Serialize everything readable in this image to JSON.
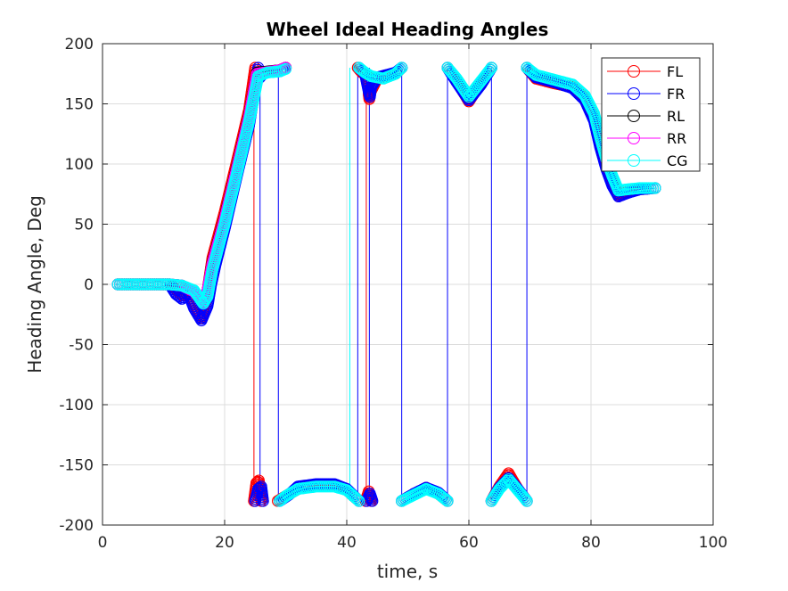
{
  "chart_data": {
    "type": "line",
    "title": "Wheel Ideal Heading Angles",
    "xlabel": "time, s",
    "ylabel": "Heading Angle, Deg",
    "xlim": [
      0,
      100
    ],
    "ylim": [
      -200,
      200
    ],
    "xticks": [
      0,
      20,
      40,
      60,
      80,
      100
    ],
    "yticks": [
      -200,
      -150,
      -100,
      -50,
      0,
      50,
      100,
      150,
      200
    ],
    "grid": true,
    "legend_position": "top-right",
    "series": [
      {
        "name": "FL",
        "color": "#ff0000",
        "segments": [
          [
            [
              2.5,
              0
            ],
            [
              11,
              0
            ],
            [
              12,
              -4
            ],
            [
              13,
              -9
            ],
            [
              14,
              -4
            ],
            [
              15,
              -15
            ],
            [
              16.2,
              -28
            ],
            [
              17,
              -12
            ],
            [
              17.5,
              5
            ],
            [
              18,
              22
            ],
            [
              20,
              60
            ],
            [
              22,
              102
            ],
            [
              24,
              145
            ],
            [
              25,
              180
            ]
          ],
          [
            [
              24.8,
              -180
            ],
            [
              25.2,
              -165
            ],
            [
              25.6,
              -163
            ],
            [
              26,
              -180
            ]
          ],
          [
            [
              25.2,
              170
            ],
            [
              26.3,
              176
            ],
            [
              29,
              178
            ],
            [
              30,
              180
            ]
          ],
          [
            [
              28.7,
              -180
            ],
            [
              30,
              -176
            ],
            [
              32,
              -170
            ],
            [
              35,
              -167
            ],
            [
              38,
              -167
            ],
            [
              40,
              -171
            ],
            [
              42,
              -180
            ]
          ],
          [
            [
              41.8,
              180
            ],
            [
              42.5,
              176
            ],
            [
              43.5,
              174
            ],
            [
              43.6,
              158
            ],
            [
              43.7,
              154
            ],
            [
              43.9,
              160
            ],
            [
              45,
              171
            ],
            [
              48,
              175
            ],
            [
              49,
              180
            ]
          ],
          [
            [
              43.1,
              -180
            ],
            [
              43.6,
              -172
            ],
            [
              44,
              -180
            ]
          ],
          [
            [
              49,
              -180
            ],
            [
              51,
              -174
            ],
            [
              53,
              -169
            ],
            [
              55,
              -174
            ],
            [
              56.5,
              -180
            ]
          ],
          [
            [
              56.5,
              180
            ],
            [
              58,
              169
            ],
            [
              60,
              152
            ],
            [
              62,
              168
            ],
            [
              63.7,
              180
            ]
          ],
          [
            [
              63.7,
              -180
            ],
            [
              65,
              -168
            ],
            [
              66.5,
              -157
            ],
            [
              68,
              -170
            ],
            [
              69.5,
              -180
            ]
          ],
          [
            [
              69.5,
              180
            ],
            [
              71,
              171
            ],
            [
              74,
              167
            ],
            [
              77,
              164
            ],
            [
              79,
              155
            ],
            [
              80.5,
              138
            ],
            [
              81.5,
              118
            ],
            [
              82.5,
              100
            ],
            [
              83.5,
              86
            ],
            [
              84.5,
              74
            ],
            [
              86,
              77
            ],
            [
              88,
              79
            ],
            [
              90.5,
              80
            ]
          ]
        ]
      },
      {
        "name": "FR",
        "color": "#0000ff",
        "segments": [
          [
            [
              2.5,
              0
            ],
            [
              11,
              0
            ],
            [
              12,
              -8
            ],
            [
              13,
              -12
            ],
            [
              14,
              -7
            ],
            [
              15,
              -20
            ],
            [
              16.2,
              -30
            ],
            [
              17.2,
              -18
            ],
            [
              17.8,
              0
            ],
            [
              18.5,
              16
            ],
            [
              20,
              46
            ],
            [
              22,
              90
            ],
            [
              24,
              132
            ],
            [
              25.5,
              180
            ]
          ],
          [
            [
              25,
              -180
            ],
            [
              25.5,
              -170
            ],
            [
              26,
              -168
            ],
            [
              26.3,
              -180
            ]
          ],
          [
            [
              25.8,
              172
            ],
            [
              26.5,
              176
            ],
            [
              29,
              177
            ],
            [
              30,
              180
            ]
          ],
          [
            [
              29,
              -180
            ],
            [
              30.5,
              -175
            ],
            [
              32,
              -168
            ],
            [
              35,
              -166
            ],
            [
              38,
              -166
            ],
            [
              40,
              -170
            ],
            [
              42,
              -180
            ]
          ],
          [
            [
              42,
              180
            ],
            [
              43,
              175
            ],
            [
              43.6,
              160
            ],
            [
              43.8,
              156
            ],
            [
              44,
              164
            ],
            [
              45,
              172
            ],
            [
              48,
              176
            ],
            [
              49,
              180
            ]
          ],
          [
            [
              43.3,
              -180
            ],
            [
              43.8,
              -174
            ],
            [
              44.2,
              -180
            ]
          ],
          [
            [
              49,
              -180
            ],
            [
              51,
              -174
            ],
            [
              53,
              -169
            ],
            [
              55,
              -173
            ],
            [
              56.5,
              -180
            ]
          ],
          [
            [
              56.5,
              180
            ],
            [
              58,
              168
            ],
            [
              60,
              153
            ],
            [
              62,
              166
            ],
            [
              63.7,
              180
            ]
          ],
          [
            [
              63.7,
              -180
            ],
            [
              65,
              -169
            ],
            [
              66.5,
              -161
            ],
            [
              68,
              -170
            ],
            [
              69.5,
              -180
            ]
          ],
          [
            [
              69.5,
              180
            ],
            [
              71,
              172
            ],
            [
              74,
              168
            ],
            [
              77,
              163
            ],
            [
              79,
              153
            ],
            [
              80.5,
              136
            ],
            [
              81.5,
              114
            ],
            [
              82.5,
              96
            ],
            [
              83.5,
              82
            ],
            [
              84.5,
              73
            ],
            [
              86,
              76
            ],
            [
              88,
              79
            ],
            [
              90.5,
              80
            ]
          ]
        ]
      },
      {
        "name": "RL",
        "color": "#000000",
        "segments": [
          [
            [
              2.5,
              0
            ],
            [
              11,
              0
            ],
            [
              13,
              -1
            ],
            [
              15,
              -6
            ],
            [
              16.5,
              -14
            ],
            [
              17.2,
              -5
            ],
            [
              18,
              18
            ],
            [
              20,
              55
            ],
            [
              22,
              97
            ],
            [
              24,
              140
            ],
            [
              25.3,
              176
            ],
            [
              29,
              178
            ],
            [
              30,
              180
            ]
          ]
        ]
      },
      {
        "name": "RR",
        "color": "#ff00ff",
        "segments": [
          [
            [
              2.5,
              0
            ],
            [
              11,
              0
            ],
            [
              13,
              -1
            ],
            [
              15,
              -6
            ],
            [
              16.5,
              -15
            ],
            [
              17.2,
              -5
            ],
            [
              18,
              17
            ],
            [
              20,
              54
            ],
            [
              22,
              96
            ],
            [
              24,
              139
            ],
            [
              25.3,
              175
            ],
            [
              29,
              178
            ],
            [
              30,
              180
            ]
          ]
        ]
      },
      {
        "name": "CG",
        "color": "#00ffff",
        "segments": [
          [
            [
              2.5,
              0
            ],
            [
              11,
              0
            ],
            [
              13,
              -1
            ],
            [
              15,
              -5
            ],
            [
              16.5,
              -16
            ],
            [
              17.2,
              -10
            ],
            [
              18,
              12
            ],
            [
              20,
              50
            ],
            [
              22,
              92
            ],
            [
              24,
              135
            ],
            [
              25.5,
              173
            ],
            [
              27,
              176
            ],
            [
              29,
              177
            ],
            [
              30,
              179
            ]
          ],
          [
            [
              29,
              -180
            ],
            [
              30,
              -176
            ],
            [
              32,
              -170
            ],
            [
              35,
              -168
            ],
            [
              38,
              -168
            ],
            [
              40,
              -171
            ],
            [
              42,
              -180
            ]
          ],
          [
            [
              42,
              180
            ],
            [
              43,
              176
            ],
            [
              44,
              173
            ],
            [
              46,
              171
            ],
            [
              48,
              175
            ],
            [
              49,
              180
            ]
          ],
          [
            [
              49,
              -180
            ],
            [
              51,
              -175
            ],
            [
              53,
              -170
            ],
            [
              55,
              -174
            ],
            [
              56.5,
              -180
            ]
          ],
          [
            [
              56.5,
              180
            ],
            [
              58,
              171
            ],
            [
              60,
              156
            ],
            [
              62,
              169
            ],
            [
              63.7,
              180
            ]
          ],
          [
            [
              63.7,
              -180
            ],
            [
              65,
              -170
            ],
            [
              66.5,
              -162
            ],
            [
              68,
              -171
            ],
            [
              69.5,
              -180
            ]
          ],
          [
            [
              69.5,
              180
            ],
            [
              71,
              174
            ],
            [
              74,
              170
            ],
            [
              77,
              166
            ],
            [
              79,
              157
            ],
            [
              80.5,
              142
            ],
            [
              81.5,
              122
            ],
            [
              82.5,
              104
            ],
            [
              83.5,
              90
            ],
            [
              84.5,
              78
            ],
            [
              86,
              79
            ],
            [
              88,
              80
            ],
            [
              90.5,
              80
            ]
          ]
        ]
      }
    ],
    "wrap_lines": [
      {
        "x": 24.8,
        "color": "#ff0000"
      },
      {
        "x": 25.8,
        "color": "#0000ff"
      },
      {
        "x": 28.8,
        "color": "#0000ff"
      },
      {
        "x": 40.5,
        "color": "#00ffff"
      },
      {
        "x": 41.8,
        "color": "#0000ff"
      },
      {
        "x": 43.2,
        "color": "#ff0000"
      },
      {
        "x": 43.7,
        "color": "#0000ff"
      },
      {
        "x": 49,
        "color": "#0000ff"
      },
      {
        "x": 56.5,
        "color": "#0000ff"
      },
      {
        "x": 63.7,
        "color": "#0000ff"
      },
      {
        "x": 69.5,
        "color": "#0000ff"
      }
    ]
  }
}
